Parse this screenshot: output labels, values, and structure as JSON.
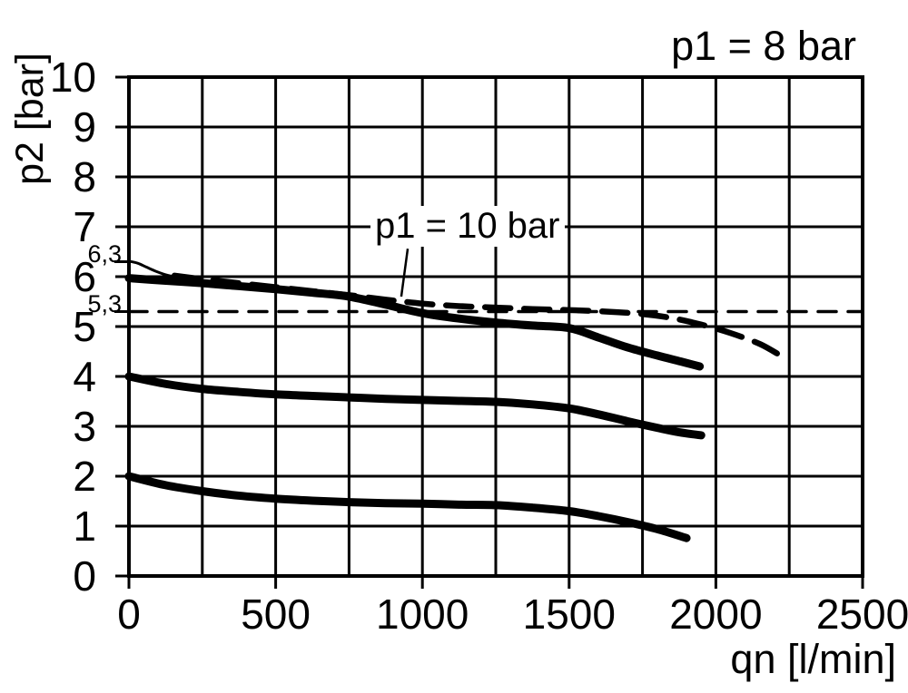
{
  "title": "p1 = 8 bar",
  "annotation": {
    "label": "p1 = 10 bar",
    "leader": [
      [
        950,
        6.56
      ],
      [
        928,
        5.6
      ]
    ]
  },
  "y_axis": {
    "label": "p2 [bar]",
    "ticks": [
      "10",
      "9",
      "8",
      "7",
      "6",
      "5",
      "4",
      "3",
      "2",
      "1",
      "0"
    ],
    "tick_values": [
      10,
      9,
      8,
      7,
      6,
      5,
      4,
      3,
      2,
      1,
      0
    ],
    "special_ticks": [
      {
        "label": "6,3",
        "value": 6.3
      },
      {
        "label": "5,3",
        "value": 5.3
      }
    ]
  },
  "x_axis": {
    "label": "qn [l/min]",
    "ticks": [
      "0",
      "500",
      "1000",
      "1500",
      "2000",
      "2500"
    ],
    "tick_values": [
      0,
      500,
      1000,
      1500,
      2000,
      2500
    ]
  },
  "chart_data": {
    "type": "line",
    "title": "p1 = 8 bar",
    "xlabel": "qn [l/min]",
    "ylabel": "p2 [bar]",
    "xlim": [
      0,
      2500
    ],
    "ylim": [
      0,
      10
    ],
    "x_grid_step": 250,
    "y_grid_step": 1,
    "grid": true,
    "legend": "none",
    "series": [
      {
        "name": "reference-line-5.3-bar",
        "style": "dashed-fine",
        "points": [
          [
            0,
            5.3
          ],
          [
            2500,
            5.3
          ]
        ]
      },
      {
        "name": "curve-set-2-bar-p1-8",
        "style": "solid-thick",
        "points": [
          [
            0,
            2.0
          ],
          [
            125,
            1.82
          ],
          [
            250,
            1.7
          ],
          [
            375,
            1.61
          ],
          [
            500,
            1.55
          ],
          [
            625,
            1.51
          ],
          [
            750,
            1.48
          ],
          [
            875,
            1.46
          ],
          [
            1000,
            1.45
          ],
          [
            1125,
            1.43
          ],
          [
            1250,
            1.42
          ],
          [
            1375,
            1.37
          ],
          [
            1500,
            1.3
          ],
          [
            1600,
            1.2
          ],
          [
            1700,
            1.08
          ],
          [
            1800,
            0.94
          ],
          [
            1900,
            0.76
          ]
        ]
      },
      {
        "name": "curve-set-4-bar-p1-8",
        "style": "solid-thick",
        "points": [
          [
            0,
            4.0
          ],
          [
            125,
            3.85
          ],
          [
            250,
            3.75
          ],
          [
            375,
            3.69
          ],
          [
            500,
            3.64
          ],
          [
            625,
            3.61
          ],
          [
            750,
            3.58
          ],
          [
            875,
            3.55
          ],
          [
            1000,
            3.53
          ],
          [
            1125,
            3.51
          ],
          [
            1250,
            3.49
          ],
          [
            1375,
            3.44
          ],
          [
            1500,
            3.36
          ],
          [
            1600,
            3.24
          ],
          [
            1700,
            3.1
          ],
          [
            1800,
            2.97
          ],
          [
            1875,
            2.88
          ],
          [
            1950,
            2.82
          ]
        ]
      },
      {
        "name": "curve-set-6-bar-p1-8",
        "style": "solid-thick",
        "points": [
          [
            0,
            5.97
          ],
          [
            120,
            5.92
          ],
          [
            250,
            5.87
          ],
          [
            375,
            5.81
          ],
          [
            500,
            5.75
          ],
          [
            625,
            5.68
          ],
          [
            750,
            5.6
          ],
          [
            875,
            5.44
          ],
          [
            1000,
            5.27
          ],
          [
            1125,
            5.16
          ],
          [
            1250,
            5.08
          ],
          [
            1375,
            5.02
          ],
          [
            1500,
            4.97
          ],
          [
            1600,
            4.78
          ],
          [
            1700,
            4.58
          ],
          [
            1800,
            4.42
          ],
          [
            1880,
            4.3
          ],
          [
            1945,
            4.2
          ]
        ]
      },
      {
        "name": "lockup-pressure-start-curve",
        "style": "solid-thin",
        "points": [
          [
            0,
            6.31
          ],
          [
            30,
            6.27
          ],
          [
            60,
            6.19
          ],
          [
            95,
            6.1
          ],
          [
            130,
            6.03
          ],
          [
            165,
            5.99
          ],
          [
            200,
            5.95
          ]
        ]
      },
      {
        "name": "curve-p1-10-bar",
        "style": "dashed-thick",
        "points": [
          [
            155,
            6.02
          ],
          [
            250,
            5.95
          ],
          [
            375,
            5.87
          ],
          [
            500,
            5.79
          ],
          [
            625,
            5.71
          ],
          [
            750,
            5.63
          ],
          [
            875,
            5.54
          ],
          [
            1000,
            5.46
          ],
          [
            1125,
            5.41
          ],
          [
            1250,
            5.38
          ],
          [
            1375,
            5.35
          ],
          [
            1500,
            5.33
          ],
          [
            1625,
            5.3
          ],
          [
            1750,
            5.25
          ],
          [
            1850,
            5.17
          ],
          [
            1950,
            5.04
          ],
          [
            2050,
            4.87
          ],
          [
            2150,
            4.65
          ],
          [
            2220,
            4.42
          ]
        ]
      }
    ]
  }
}
